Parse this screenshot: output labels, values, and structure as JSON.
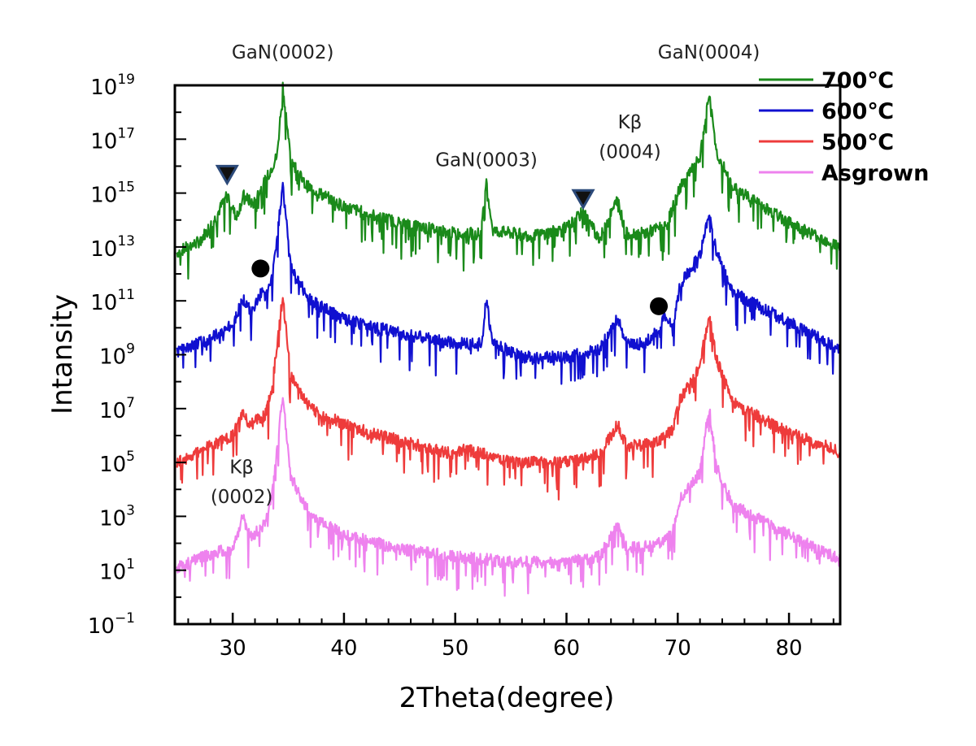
{
  "chart_data": {
    "type": "line",
    "xlabel": "2Theta(degree)",
    "ylabel": "Intansity",
    "xlim": [
      24.8,
      84.6
    ],
    "ylim_log10": [
      -1,
      19
    ],
    "y_scale": "log",
    "x_ticks": [
      30,
      40,
      50,
      60,
      70,
      80
    ],
    "y_ticks": [
      {
        "base": "10",
        "exp": "19",
        "log10": 19
      },
      {
        "base": "10",
        "exp": "17",
        "log10": 17
      },
      {
        "base": "10",
        "exp": "15",
        "log10": 15
      },
      {
        "base": "10",
        "exp": "13",
        "log10": 13
      },
      {
        "base": "10",
        "exp": "11",
        "log10": 11
      },
      {
        "base": "10",
        "exp": "9",
        "log10": 9
      },
      {
        "base": "10",
        "exp": "7",
        "log10": 7
      },
      {
        "base": "10",
        "exp": "5",
        "log10": 5
      },
      {
        "base": "10",
        "exp": "3",
        "log10": 3
      },
      {
        "base": "10",
        "exp": "1",
        "log10": 1
      },
      {
        "base": "10",
        "exp": "−1",
        "log10": -1
      }
    ],
    "grid": false,
    "legend_position": "top-right, outside plot",
    "series": [
      {
        "name": "700℃",
        "color": "#1a8a1a",
        "points_log10": [
          [
            25,
            12.8
          ],
          [
            27,
            13.2
          ],
          [
            28.5,
            14.1
          ],
          [
            29.5,
            15.0
          ],
          [
            30.3,
            14.1
          ],
          [
            31.0,
            14.9
          ],
          [
            31.8,
            14.6
          ],
          [
            33.0,
            15.5
          ],
          [
            34.0,
            16.4
          ],
          [
            34.5,
            19.0
          ],
          [
            35.2,
            16.3
          ],
          [
            36.5,
            15.3
          ],
          [
            40,
            14.5
          ],
          [
            45,
            13.9
          ],
          [
            50,
            13.5
          ],
          [
            52.3,
            13.5
          ],
          [
            52.8,
            15.3
          ],
          [
            53.4,
            13.6
          ],
          [
            57,
            13.4
          ],
          [
            60,
            13.7
          ],
          [
            61.5,
            14.3
          ],
          [
            63,
            13.3
          ],
          [
            64.6,
            14.8
          ],
          [
            65.3,
            13.5
          ],
          [
            67,
            13.5
          ],
          [
            69,
            13.8
          ],
          [
            70.2,
            15.2
          ],
          [
            72,
            16.3
          ],
          [
            72.8,
            18.7
          ],
          [
            73.5,
            16.5
          ],
          [
            75,
            15.2
          ],
          [
            80,
            13.9
          ],
          [
            84.6,
            13.0
          ]
        ]
      },
      {
        "name": "600℃",
        "color": "#1010d0",
        "points_log10": [
          [
            25,
            9.1
          ],
          [
            28,
            9.6
          ],
          [
            30,
            10.1
          ],
          [
            30.9,
            11.1
          ],
          [
            31.6,
            10.6
          ],
          [
            32.6,
            11.3
          ],
          [
            33.0,
            11.1
          ],
          [
            33.6,
            12.0
          ],
          [
            34.5,
            15.3
          ],
          [
            35.2,
            12.3
          ],
          [
            37,
            11.0
          ],
          [
            40,
            10.3
          ],
          [
            45,
            9.8
          ],
          [
            50,
            9.4
          ],
          [
            52.4,
            9.5
          ],
          [
            52.8,
            11.1
          ],
          [
            53.3,
            9.5
          ],
          [
            56,
            8.9
          ],
          [
            60,
            8.9
          ],
          [
            63,
            9.2
          ],
          [
            64.6,
            10.4
          ],
          [
            65.4,
            9.4
          ],
          [
            67,
            9.4
          ],
          [
            68.3,
            9.9
          ],
          [
            68.8,
            10.4
          ],
          [
            69.6,
            10.1
          ],
          [
            70.2,
            11.6
          ],
          [
            72,
            12.7
          ],
          [
            72.8,
            14.2
          ],
          [
            73.5,
            12.8
          ],
          [
            75,
            11.3
          ],
          [
            80,
            10.2
          ],
          [
            84.6,
            9.2
          ]
        ]
      },
      {
        "name": "500℃",
        "color": "#ee3b3b",
        "points_log10": [
          [
            25,
            5.0
          ],
          [
            28,
            5.6
          ],
          [
            30,
            6.0
          ],
          [
            30.9,
            6.8
          ],
          [
            31.6,
            6.4
          ],
          [
            33.0,
            6.8
          ],
          [
            33.6,
            8.0
          ],
          [
            34.5,
            11.2
          ],
          [
            35.2,
            8.2
          ],
          [
            37,
            7.0
          ],
          [
            40,
            6.4
          ],
          [
            45,
            5.8
          ],
          [
            50,
            5.3
          ],
          [
            51,
            5.5
          ],
          [
            55,
            5.0
          ],
          [
            60,
            5.0
          ],
          [
            63,
            5.3
          ],
          [
            64.6,
            6.4
          ],
          [
            65.4,
            5.6
          ],
          [
            68,
            5.7
          ],
          [
            69.5,
            6.2
          ],
          [
            70.2,
            7.3
          ],
          [
            72,
            8.6
          ],
          [
            72.8,
            10.5
          ],
          [
            73.5,
            8.8
          ],
          [
            75,
            7.2
          ],
          [
            80,
            6.1
          ],
          [
            84.6,
            5.4
          ]
        ]
      },
      {
        "name": "Asgrown",
        "color": "#ee82ee",
        "points_log10": [
          [
            25,
            1.1
          ],
          [
            28,
            1.6
          ],
          [
            30,
            1.8
          ],
          [
            30.9,
            3.0
          ],
          [
            31.6,
            2.2
          ],
          [
            33.0,
            2.8
          ],
          [
            33.6,
            4.0
          ],
          [
            34.5,
            7.5
          ],
          [
            35.2,
            4.5
          ],
          [
            37,
            3.0
          ],
          [
            40,
            2.3
          ],
          [
            45,
            1.8
          ],
          [
            50,
            1.5
          ],
          [
            55,
            1.3
          ],
          [
            60,
            1.3
          ],
          [
            63,
            1.5
          ],
          [
            64.6,
            2.7
          ],
          [
            65.4,
            1.8
          ],
          [
            68,
            1.9
          ],
          [
            69.5,
            2.4
          ],
          [
            70.2,
            3.6
          ],
          [
            72,
            4.6
          ],
          [
            72.8,
            7.1
          ],
          [
            73.5,
            4.8
          ],
          [
            75,
            3.4
          ],
          [
            80,
            2.3
          ],
          [
            84.6,
            1.4
          ]
        ]
      }
    ],
    "annotations": [
      {
        "text": "GaN(0002)",
        "x": 34.5,
        "y_log10": 20.0,
        "lines": [
          "GaN(0002)"
        ]
      },
      {
        "text": "GaN(0004)",
        "x": 72.8,
        "y_log10": 20.0,
        "lines": [
          "GaN(0004)"
        ]
      },
      {
        "text": "GaN(0003)",
        "x": 52.8,
        "y_log10": 16.0,
        "lines": [
          "GaN(0003)"
        ]
      },
      {
        "text": "Kβ (0004)",
        "x": 65.7,
        "lines": [
          "Kβ",
          "(0004)"
        ],
        "y_log10_lines": [
          17.4,
          16.3
        ]
      },
      {
        "text": "Kβ (0002)",
        "x": 30.8,
        "lines": [
          "Kβ",
          "(0002)"
        ],
        "y_log10_lines": [
          4.6,
          3.5
        ]
      }
    ],
    "markers": [
      {
        "shape": "triangle-down",
        "x": 29.5,
        "y_log10": 15.7
      },
      {
        "shape": "triangle-down",
        "x": 61.5,
        "y_log10": 14.8
      },
      {
        "shape": "circle",
        "x": 32.5,
        "y_log10": 12.2
      },
      {
        "shape": "circle",
        "x": 68.3,
        "y_log10": 10.8
      }
    ]
  }
}
